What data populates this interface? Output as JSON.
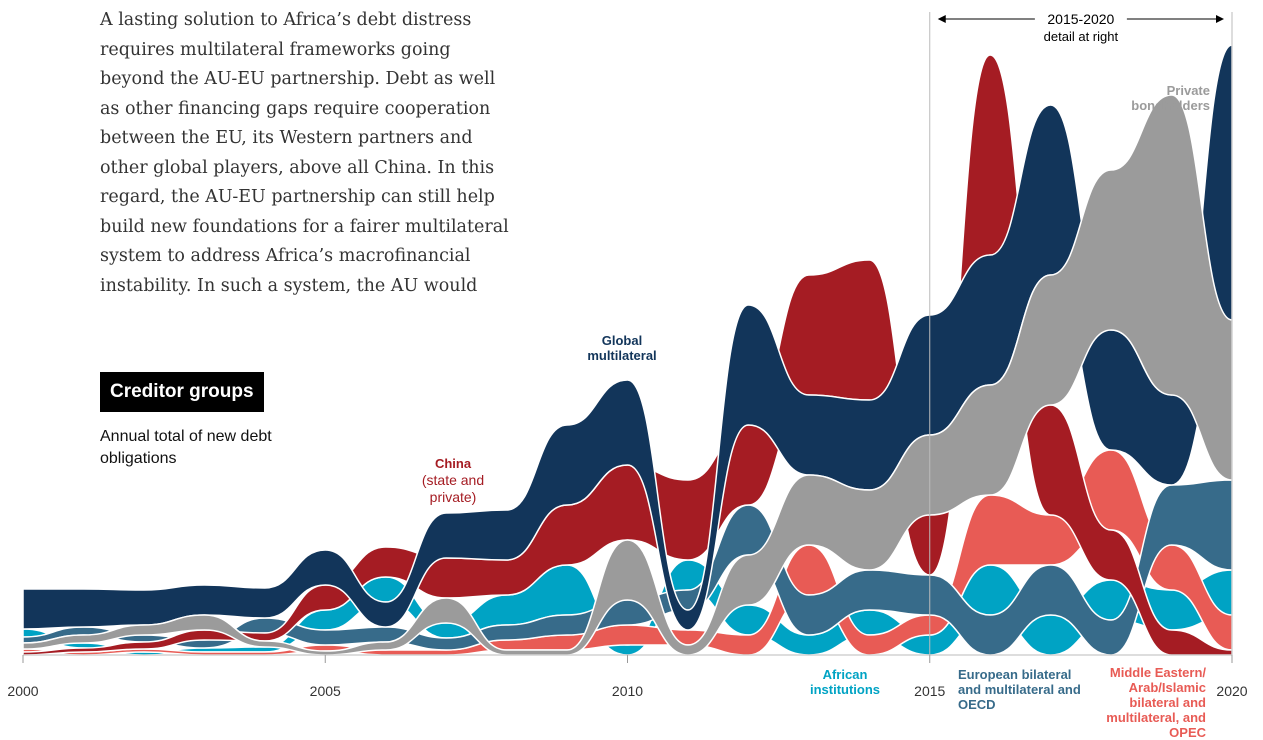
{
  "chart_data": {
    "type": "ranked-stream",
    "text_lines": [
      "A lasting solution to Africa’s debt distress",
      "requires multilateral frameworks going",
      "beyond the AU-EU partnership. Debt as well",
      "as other financing gaps require cooperation",
      "between the EU, its Western partners and",
      "other global players, above all China. In this",
      "regard, the AU-EU partnership can still help",
      "build new foundations for a fairer multilateral",
      "system to address Africa’s macrofinancial",
      "instability. In such a system, the AU would"
    ],
    "title": "Creditor groups",
    "subtitle": "Annual total of new debt obligations",
    "annotation": {
      "line1": "2015-2020",
      "line2": "detail at right",
      "from": 2015,
      "to": 2020
    },
    "x": [
      2000,
      2001,
      2002,
      2003,
      2004,
      2005,
      2006,
      2007,
      2008,
      2009,
      2010,
      2011,
      2012,
      2013,
      2014,
      2015,
      2016,
      2017,
      2018,
      2019,
      2020
    ],
    "xlim": [
      2000,
      2020
    ],
    "xticks": [
      2000,
      2005,
      2010,
      2015,
      2020
    ],
    "ylim": [
      0,
      61
    ],
    "series": [
      {
        "name": "Global multilateral",
        "color": "#12355a",
        "values": [
          4.0,
          3.8,
          3.5,
          3.0,
          3.0,
          3.5,
          2.5,
          4.5,
          5.0,
          8.0,
          8.5,
          2.0,
          12.0,
          8.0,
          9.0,
          12.0,
          13.0,
          17.0,
          12.0,
          9.0,
          27.5
        ]
      },
      {
        "name": "China",
        "detail": "(state and private)",
        "color": "#a51c23",
        "values": [
          0.3,
          0.4,
          0.7,
          1.0,
          0.8,
          2.5,
          3.0,
          4.0,
          3.5,
          6.0,
          7.5,
          8.0,
          8.0,
          12.0,
          14.0,
          6.0,
          20.0,
          11.0,
          5.0,
          2.5,
          0.5
        ]
      },
      {
        "name": "Private bondholders",
        "color": "#9b9b9b",
        "values": [
          0.6,
          0.8,
          1.0,
          1.5,
          0.6,
          0.4,
          0.8,
          2.5,
          0.5,
          0.5,
          6.0,
          1.0,
          5.0,
          7.0,
          8.0,
          8.0,
          11.0,
          13.0,
          16.0,
          30.0,
          16.0
        ]
      },
      {
        "name": "African institutions",
        "color": "#00a3c4",
        "values": [
          0.8,
          0.5,
          0.3,
          0.4,
          0.5,
          2.0,
          2.5,
          1.5,
          3.0,
          5.0,
          1.0,
          3.0,
          3.0,
          2.0,
          2.5,
          2.0,
          5.0,
          4.0,
          4.0,
          4.0,
          4.5
        ]
      },
      {
        "name": "European bilateral and multilateral and OECD",
        "color": "#376b8a",
        "values": [
          0.6,
          0.8,
          0.7,
          0.8,
          1.5,
          1.5,
          1.5,
          1.2,
          1.5,
          2.0,
          2.5,
          2.0,
          5.0,
          4.0,
          4.0,
          4.0,
          4.0,
          5.0,
          3.5,
          6.0,
          9.0
        ]
      },
      {
        "name": "Middle Eastern/ Arab/Islamic bilateral and multilateral, and OPEC",
        "color": "#e85b55",
        "values": [
          0.3,
          0.3,
          0.3,
          0.3,
          0.3,
          0.6,
          0.5,
          0.5,
          1.0,
          1.5,
          2.0,
          1.5,
          2.0,
          5.0,
          2.0,
          2.0,
          7.0,
          5.0,
          8.0,
          4.5,
          3.5
        ]
      }
    ]
  }
}
